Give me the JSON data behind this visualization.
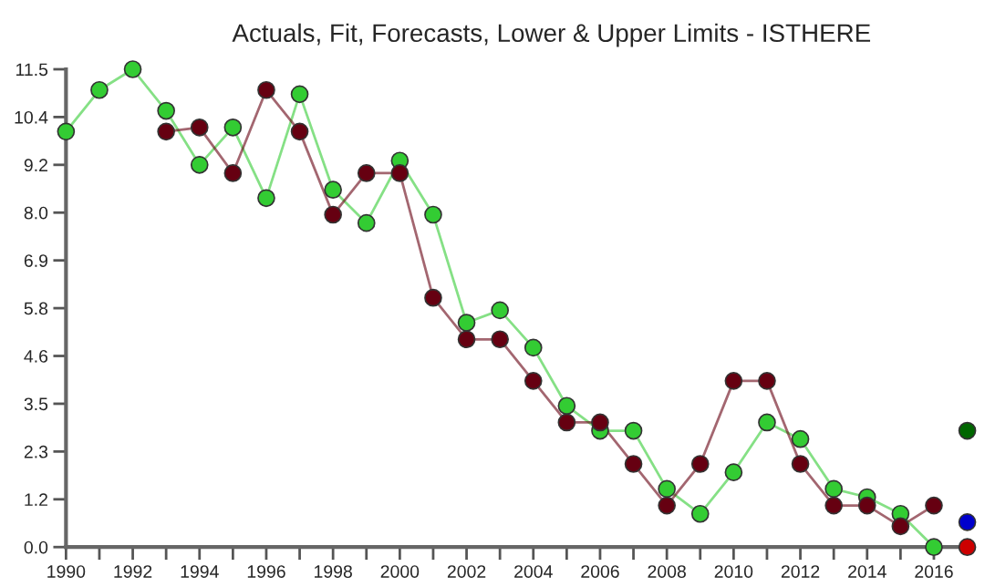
{
  "chart_data": {
    "type": "line",
    "title": "Actuals, Fit, Forecasts, Lower & Upper Limits - ISTHERE",
    "marker": "circle",
    "grid": false,
    "legend": false,
    "xlim": [
      1990,
      2017
    ],
    "ylim": [
      0,
      11.5
    ],
    "xticks": [
      1990,
      {
        "value": 1991,
        "label": null
      },
      1992,
      {
        "value": 1993,
        "label": null
      },
      1994,
      {
        "value": 1995,
        "label": null
      },
      1996,
      {
        "value": 1997,
        "label": null
      },
      1998,
      {
        "value": 1999,
        "label": null
      },
      2000,
      {
        "value": 2001,
        "label": null
      },
      2002,
      {
        "value": 2003,
        "label": null
      },
      2004,
      {
        "value": 2005,
        "label": null
      },
      2006,
      {
        "value": 2007,
        "label": null
      },
      2008,
      {
        "value": 2009,
        "label": null
      },
      2010,
      {
        "value": 2011,
        "label": null
      },
      2012,
      {
        "value": 2013,
        "label": null
      },
      2014,
      {
        "value": 2015,
        "label": null
      },
      2016
    ],
    "yticks": [
      {
        "value": 0,
        "label": "0.0"
      },
      {
        "value": 1.15,
        "label": "1.2"
      },
      2.3,
      {
        "value": 3.45,
        "label": "3.5"
      },
      4.6,
      {
        "value": 5.75,
        "label": "5.8"
      },
      6.9,
      {
        "value": 8.05,
        "label": "8.0"
      },
      9.2,
      {
        "value": 10.35,
        "label": "10.4"
      },
      11.5
    ],
    "series": [
      {
        "color": "#33cc33",
        "x": [
          1990,
          1991,
          1992,
          1993,
          1994,
          1995,
          1996,
          1997,
          1998,
          1999,
          2000,
          2001,
          2002,
          2003,
          2004,
          2005,
          2006,
          2007,
          2008,
          2009,
          2010,
          2011,
          2012,
          2013,
          2014,
          2015,
          2016
        ],
        "values": [
          10.0,
          11.0,
          11.5,
          10.5,
          9.2,
          10.1,
          8.4,
          10.9,
          8.6,
          7.8,
          9.3,
          8.0,
          5.4,
          5.7,
          4.8,
          3.4,
          2.8,
          2.8,
          1.4,
          0.8,
          1.8,
          3.0,
          2.6,
          1.4,
          1.2,
          0.8,
          0.0
        ]
      },
      {
        "color": "#660011",
        "x": [
          1993,
          1994,
          1995,
          1996,
          1997,
          1998,
          1999,
          2000,
          2001,
          2002,
          2003,
          2004,
          2005,
          2006,
          2007,
          2008,
          2009,
          2010,
          2011,
          2012,
          2013,
          2014,
          2015,
          2016
        ],
        "values": [
          10.0,
          10.1,
          9.0,
          11.0,
          10.0,
          8.0,
          9.0,
          9.0,
          6.0,
          5.0,
          5.0,
          4.0,
          3.0,
          3.0,
          2.0,
          1.0,
          2.0,
          4.0,
          4.0,
          2.0,
          1.0,
          1.0,
          0.5,
          1.0
        ]
      },
      {
        "type": "scatter",
        "color": "#006600",
        "x": [
          2017
        ],
        "values": [
          2.8
        ]
      },
      {
        "type": "scatter",
        "color": "#0000cc",
        "x": [
          2017
        ],
        "values": [
          0.6
        ]
      },
      {
        "type": "scatter",
        "color": "#cc0000",
        "x": [
          2017
        ],
        "values": [
          0.0
        ]
      }
    ]
  }
}
